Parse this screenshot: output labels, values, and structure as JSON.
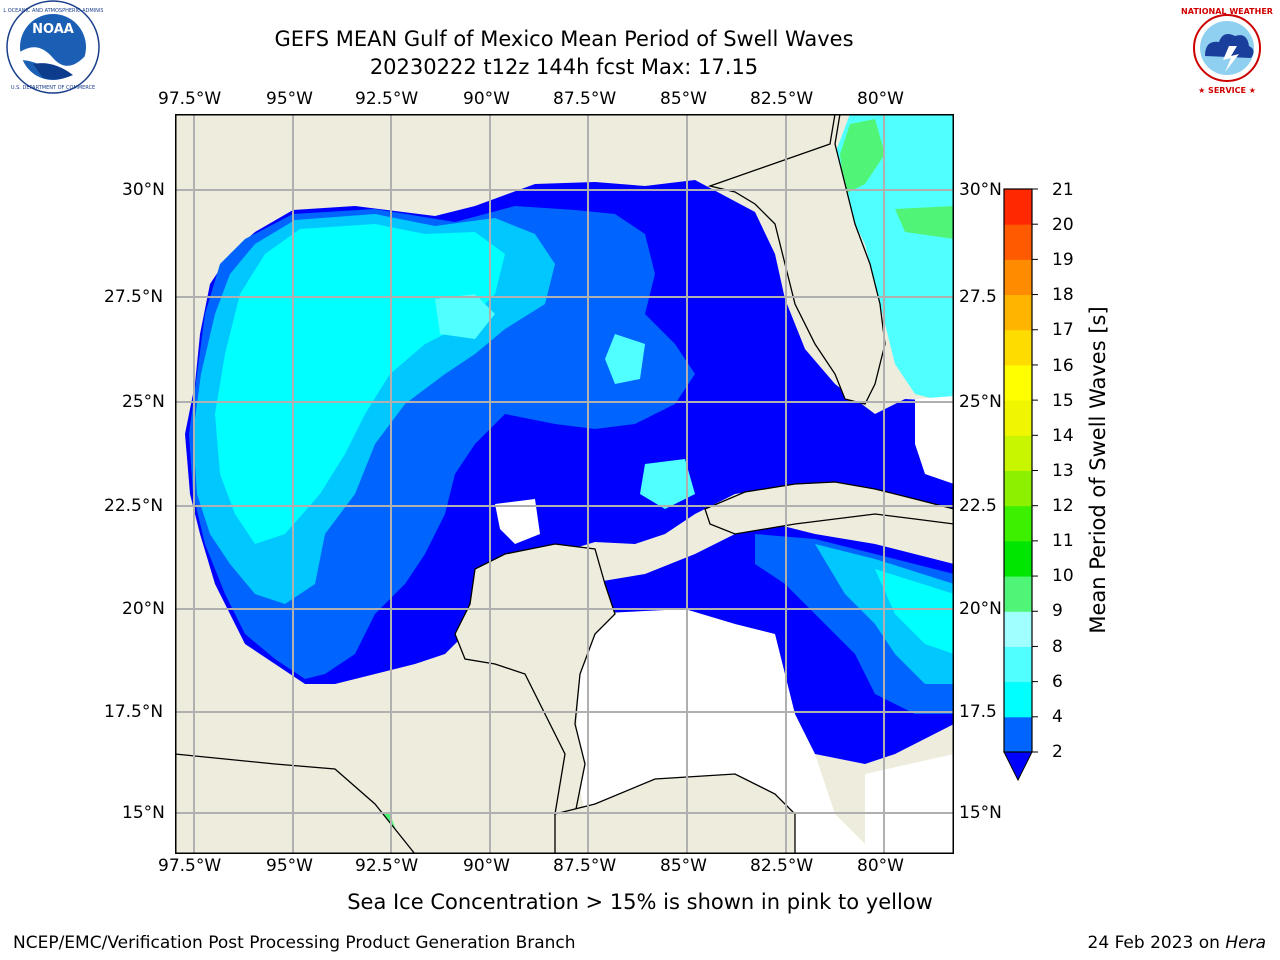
{
  "title": {
    "line1": "GEFS MEAN Gulf of Mexico Mean Period of Swell Waves",
    "line2": "20230222 t12z 144h fcst   Max: 17.15"
  },
  "logos": {
    "left": {
      "text": "NOAA",
      "ring_text": "NATIONAL OCEANIC AND ATMOSPHERIC ADMINISTRATION · U.S. DEPARTMENT OF COMMERCE"
    },
    "right": {
      "ring_text": "NATIONAL WEATHER SERVICE"
    }
  },
  "map": {
    "lon_labels": [
      "97.5°W",
      "95°W",
      "92.5°W",
      "90°W",
      "87.5°W",
      "85°W",
      "82.5°W",
      "80°W"
    ],
    "lat_labels_left": [
      "30°N",
      "27.5°N",
      "25°N",
      "22.5°N",
      "20°N",
      "17.5°N",
      "15°N"
    ],
    "lat_labels_right": [
      "30°N",
      "27.5",
      "25°N",
      "22.5",
      "20°N",
      "17.5",
      "15°N"
    ],
    "colors": {
      "land": "#eeecdc",
      "grid": "#b0b0b0",
      "coast": "#000000"
    }
  },
  "colorbar": {
    "title": "Mean Period of Swell Waves [s]",
    "tick_labels": [
      "2",
      "4",
      "6",
      "8",
      "9",
      "10",
      "11",
      "12",
      "13",
      "14",
      "15",
      "16",
      "17",
      "18",
      "19",
      "20",
      "21"
    ],
    "colors": [
      "#0064ff",
      "#00c8ff",
      "#00ffff",
      "#50ffff",
      "#a0ffff",
      "#50f578",
      "#00e600",
      "#3cf000",
      "#8cf000",
      "#c8f500",
      "#f0f500",
      "#ffff00",
      "#ffdc00",
      "#ffb400",
      "#ff8c00",
      "#ff5a00",
      "#ff2800",
      "#ff0000"
    ],
    "under_color": "#0000ff"
  },
  "footer": {
    "sea_ice_note": "Sea Ice Concentration > 15% is shown in pink to yellow",
    "credit": "NCEP/EMC/Verification Post Processing Product Generation Branch",
    "date": "24 Feb 2023 on",
    "host": "Hera"
  }
}
